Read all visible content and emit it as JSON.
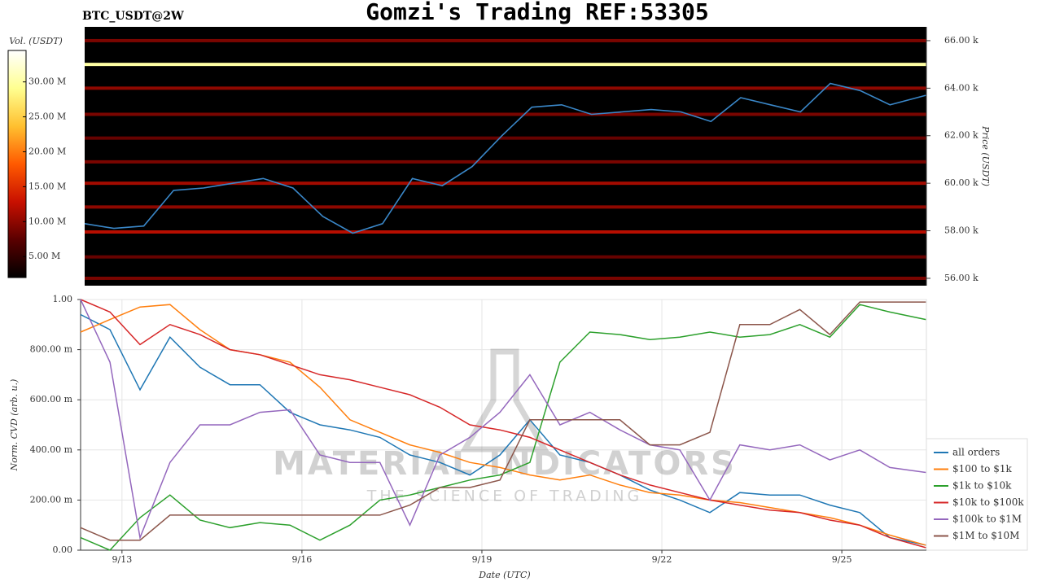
{
  "header": {
    "title": "Gomzi's Trading REF:53305",
    "symbol": "BTC_USDT@2W"
  },
  "watermark": {
    "title": "MATERIAL INDICATORS",
    "subtitle": "THE SCIENCE OF TRADING"
  },
  "chart_data": [
    {
      "type": "heatmap",
      "ylabel": "Price (USDT)",
      "colorbar_label": "Vol. (USDT)",
      "xlim": [
        12.31,
        26.41
      ],
      "ylim": [
        55690,
        66580
      ],
      "yticks": [
        {
          "value": 56000,
          "label": "56.00 k"
        },
        {
          "value": 58000,
          "label": "58.00 k"
        },
        {
          "value": 60000,
          "label": "60.00 k"
        },
        {
          "value": 62000,
          "label": "62.00 k"
        },
        {
          "value": 64000,
          "label": "64.00 k"
        },
        {
          "value": 66000,
          "label": "66.00 k"
        }
      ],
      "clim": [
        2000000,
        34500000
      ],
      "cticks": [
        {
          "value": 5000000,
          "label": "5.00 M"
        },
        {
          "value": 10000000,
          "label": "10.00 M"
        },
        {
          "value": 15000000,
          "label": "15.00 M"
        },
        {
          "value": 20000000,
          "label": "20.00 M"
        },
        {
          "value": 25000000,
          "label": "25.00 M"
        },
        {
          "value": 30000000,
          "label": "30.00 M"
        }
      ],
      "colormap": [
        "#000000",
        "#5a0000",
        "#c81000",
        "#ff5a00",
        "#ffc030",
        "#ffff90",
        "#ffffff"
      ],
      "levels": {
        "price": [
          66000,
          65000,
          64000,
          62900,
          61900,
          60900,
          60000,
          59000,
          57950,
          56900,
          56000
        ],
        "volume": [
          9000000,
          30000000,
          10000000,
          9000000,
          8000000,
          9000000,
          11000000,
          10000000,
          12000000,
          8000000,
          9000000
        ]
      },
      "line": {
        "color": "#3a87c8",
        "x": [
          12.31,
          12.8,
          13.3,
          13.8,
          14.3,
          14.8,
          15.3,
          15.8,
          16.3,
          16.8,
          17.3,
          17.8,
          18.3,
          18.8,
          19.3,
          19.8,
          20.3,
          20.8,
          21.3,
          21.8,
          22.3,
          22.8,
          23.3,
          23.8,
          24.3,
          24.8,
          25.3,
          25.8,
          26.4
        ],
        "values": [
          58300,
          58100,
          58200,
          59700,
          59800,
          60000,
          60200,
          59800,
          58600,
          57900,
          58300,
          60200,
          59900,
          60700,
          62000,
          63200,
          63300,
          62900,
          63000,
          63100,
          63000,
          62600,
          63600,
          63300,
          63000,
          64200,
          63900,
          63300,
          63700
        ]
      }
    },
    {
      "type": "line",
      "xlabel": "Date (UTC)",
      "ylabel": "Norm. CVD (arb. u.)",
      "xlim": [
        12.31,
        26.41
      ],
      "ylim": [
        0,
        1
      ],
      "xticks": [
        {
          "value": 13,
          "label": "9/13"
        },
        {
          "value": 16,
          "label": "9/16"
        },
        {
          "value": 19,
          "label": "9/19"
        },
        {
          "value": 22,
          "label": "9/22"
        },
        {
          "value": 25,
          "label": "9/25"
        }
      ],
      "yticks": [
        {
          "value": 0,
          "label": "0.00"
        },
        {
          "value": 0.2,
          "label": "200.00 m"
        },
        {
          "value": 0.4,
          "label": "400.00 m"
        },
        {
          "value": 0.6,
          "label": "600.00 m"
        },
        {
          "value": 0.8,
          "label": "800.00 m"
        },
        {
          "value": 1,
          "label": "1.00"
        }
      ],
      "grid": true,
      "legend": "right",
      "x": [
        12.31,
        12.8,
        13.3,
        13.8,
        14.3,
        14.8,
        15.3,
        15.8,
        16.3,
        16.8,
        17.3,
        17.8,
        18.3,
        18.8,
        19.3,
        19.8,
        20.3,
        20.8,
        21.3,
        21.8,
        22.3,
        22.8,
        23.3,
        23.8,
        24.3,
        24.8,
        25.3,
        25.8,
        26.4
      ],
      "series": [
        {
          "name": "all orders",
          "color": "#1f77b4",
          "values": [
            0.94,
            0.88,
            0.64,
            0.85,
            0.73,
            0.66,
            0.66,
            0.55,
            0.5,
            0.48,
            0.45,
            0.38,
            0.35,
            0.3,
            0.38,
            0.52,
            0.38,
            0.35,
            0.3,
            0.24,
            0.2,
            0.15,
            0.23,
            0.22,
            0.22,
            0.18,
            0.15,
            0.05,
            0.02
          ]
        },
        {
          "name": "$100 to $1k",
          "color": "#ff7f0e",
          "values": [
            0.87,
            0.92,
            0.97,
            0.98,
            0.88,
            0.8,
            0.78,
            0.75,
            0.65,
            0.52,
            0.47,
            0.42,
            0.39,
            0.35,
            0.33,
            0.3,
            0.28,
            0.3,
            0.26,
            0.23,
            0.22,
            0.2,
            0.19,
            0.17,
            0.15,
            0.13,
            0.1,
            0.06,
            0.02
          ]
        },
        {
          "name": "$1k to $10k",
          "color": "#2ca02c",
          "values": [
            0.05,
            0,
            0.13,
            0.22,
            0.12,
            0.09,
            0.11,
            0.1,
            0.04,
            0.1,
            0.2,
            0.22,
            0.25,
            0.28,
            0.3,
            0.35,
            0.75,
            0.87,
            0.86,
            0.84,
            0.85,
            0.87,
            0.85,
            0.86,
            0.9,
            0.85,
            0.98,
            0.95,
            0.92
          ]
        },
        {
          "name": "$10k to $100k",
          "color": "#d62728",
          "values": [
            1,
            0.95,
            0.82,
            0.9,
            0.86,
            0.8,
            0.78,
            0.74,
            0.7,
            0.68,
            0.65,
            0.62,
            0.57,
            0.5,
            0.48,
            0.45,
            0.4,
            0.35,
            0.3,
            0.26,
            0.23,
            0.2,
            0.18,
            0.16,
            0.15,
            0.12,
            0.1,
            0.05,
            0.01
          ]
        },
        {
          "name": "$100k to $1M",
          "color": "#9467bd",
          "values": [
            1,
            0.75,
            0.05,
            0.35,
            0.5,
            0.5,
            0.55,
            0.56,
            0.38,
            0.35,
            0.35,
            0.1,
            0.38,
            0.45,
            0.55,
            0.7,
            0.5,
            0.55,
            0.48,
            0.42,
            0.4,
            0.2,
            0.42,
            0.4,
            0.42,
            0.36,
            0.4,
            0.33,
            0.31
          ]
        },
        {
          "name": "$1M to $10M",
          "color": "#8c564b",
          "values": [
            0.09,
            0.04,
            0.04,
            0.14,
            0.14,
            0.14,
            0.14,
            0.14,
            0.14,
            0.14,
            0.14,
            0.18,
            0.25,
            0.25,
            0.28,
            0.52,
            0.52,
            0.52,
            0.52,
            0.42,
            0.42,
            0.47,
            0.9,
            0.9,
            0.96,
            0.86,
            0.99,
            0.99,
            0.99
          ]
        }
      ]
    }
  ]
}
